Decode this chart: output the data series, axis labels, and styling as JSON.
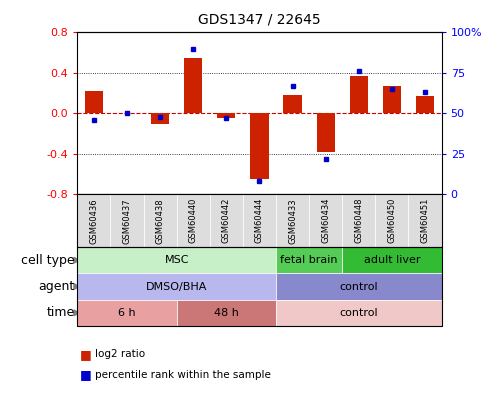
{
  "title": "GDS1347 / 22645",
  "samples": [
    "GSM60436",
    "GSM60437",
    "GSM60438",
    "GSM60440",
    "GSM60442",
    "GSM60444",
    "GSM60433",
    "GSM60434",
    "GSM60448",
    "GSM60450",
    "GSM60451"
  ],
  "log2_ratio": [
    0.22,
    0.0,
    -0.1,
    0.55,
    -0.05,
    -0.65,
    0.18,
    -0.38,
    0.37,
    0.27,
    0.17
  ],
  "percentile_rank": [
    46,
    50,
    48,
    90,
    47,
    8,
    67,
    22,
    76,
    65,
    63
  ],
  "ylim_left": [
    -0.8,
    0.8
  ],
  "ylim_right": [
    0,
    100
  ],
  "yticks_left": [
    -0.8,
    -0.4,
    0.0,
    0.4,
    0.8
  ],
  "yticks_right": [
    0,
    25,
    50,
    75,
    100
  ],
  "ytick_labels_right": [
    "0",
    "25",
    "50",
    "75",
    "100%"
  ],
  "cell_type_groups": [
    {
      "label": "MSC",
      "start": 0,
      "end": 5,
      "color": "#c8f0c8"
    },
    {
      "label": "fetal brain",
      "start": 6,
      "end": 7,
      "color": "#55cc55"
    },
    {
      "label": "adult liver",
      "start": 8,
      "end": 10,
      "color": "#33bb33"
    }
  ],
  "agent_groups": [
    {
      "label": "DMSO/BHA",
      "start": 0,
      "end": 5,
      "color": "#b8b8ee"
    },
    {
      "label": "control",
      "start": 6,
      "end": 10,
      "color": "#8888cc"
    }
  ],
  "time_groups": [
    {
      "label": "6 h",
      "start": 0,
      "end": 2,
      "color": "#e8a0a0"
    },
    {
      "label": "48 h",
      "start": 3,
      "end": 5,
      "color": "#cc7777"
    },
    {
      "label": "control",
      "start": 6,
      "end": 10,
      "color": "#f0c8c8"
    }
  ],
  "bar_color": "#cc2200",
  "dot_color": "#0000cc",
  "zero_line_color": "#cc0000",
  "grid_color": "#555555",
  "legend_items": [
    {
      "label": "log2 ratio",
      "color": "#cc2200"
    },
    {
      "label": "percentile rank within the sample",
      "color": "#0000cc"
    }
  ],
  "xtick_bg": "#dddddd",
  "row_label_fontsize": 9,
  "sample_fontsize": 6,
  "annotation_fontsize": 8
}
